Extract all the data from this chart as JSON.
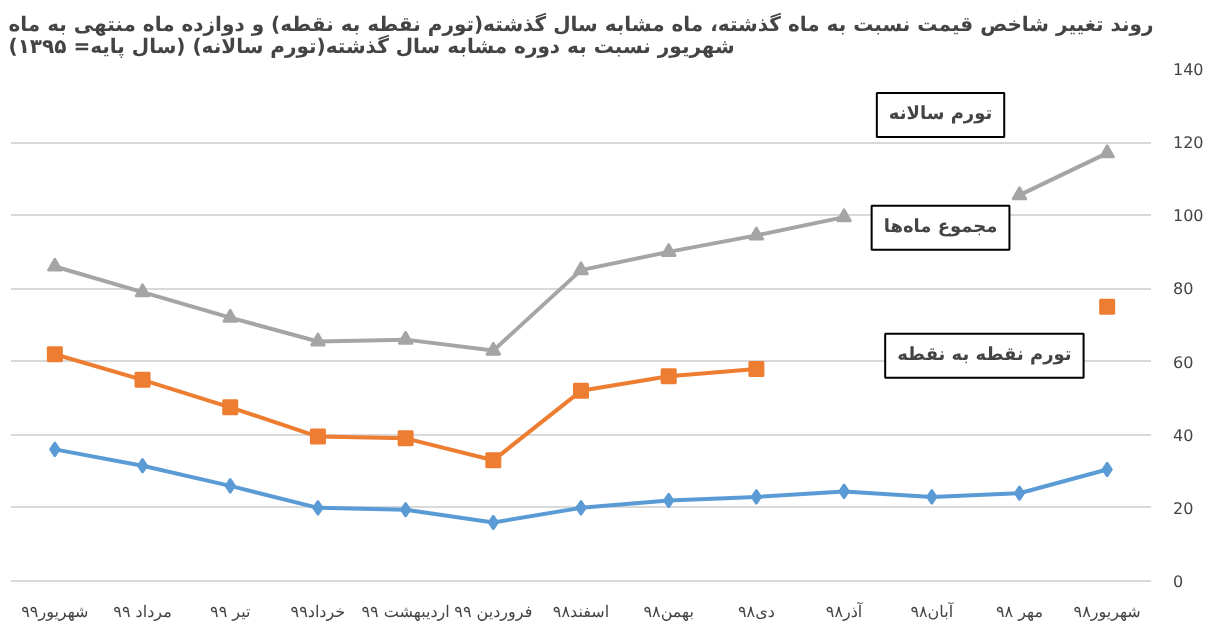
{
  "chart_data": {
    "type": "line",
    "title": "روند تغییر شاخص قیمت نسبت به ماه گذشته، ماه مشابه سال گذشته(تورم نقطه به نقطه) و دوازده ماه منتهی به ماه\nشهریور نسبت به دوره مشابه سال گذشته(تورم سالانه) (سال پایه= ۱۳۹۵)",
    "categories": [
      "شهریور۹۹",
      "مرداد ۹۹",
      "تیر ۹۹",
      "خرداد۹۹",
      "اردیبهشت ۹۹",
      "فروردین ۹۹",
      "اسفند۹۸",
      "بهمن۹۸",
      "دی۹۸",
      "آذر۹۸",
      "آبان۹۸",
      "مهر ۹۸",
      "شهریور۹۸"
    ],
    "series": [
      {
        "color": "#5b9bd5",
        "marker": "diamond",
        "values": [
          36,
          31.5,
          26,
          20,
          19.5,
          16,
          20,
          22,
          23,
          24.5,
          23,
          24,
          30.5
        ]
      },
      {
        "color": "#ed7d31",
        "marker": "square",
        "values": [
          62,
          55,
          47.5,
          39.5,
          39,
          33,
          52,
          56,
          58,
          null,
          null,
          null,
          75
        ]
      },
      {
        "color": "#a5a5a5",
        "marker": "triangle",
        "values": [
          86,
          79,
          72,
          65.5,
          66,
          63,
          85,
          90,
          94.5,
          99.5,
          null,
          105.5,
          117
        ]
      }
    ],
    "annotations": [
      "تورم سالانه",
      "مجموع ماه‌ها",
      "تورم نقطه به نقطه"
    ],
    "ylim": [
      0,
      140
    ],
    "yticks": [
      0,
      20,
      40,
      60,
      80,
      100,
      120,
      140
    ],
    "grid": "y"
  }
}
